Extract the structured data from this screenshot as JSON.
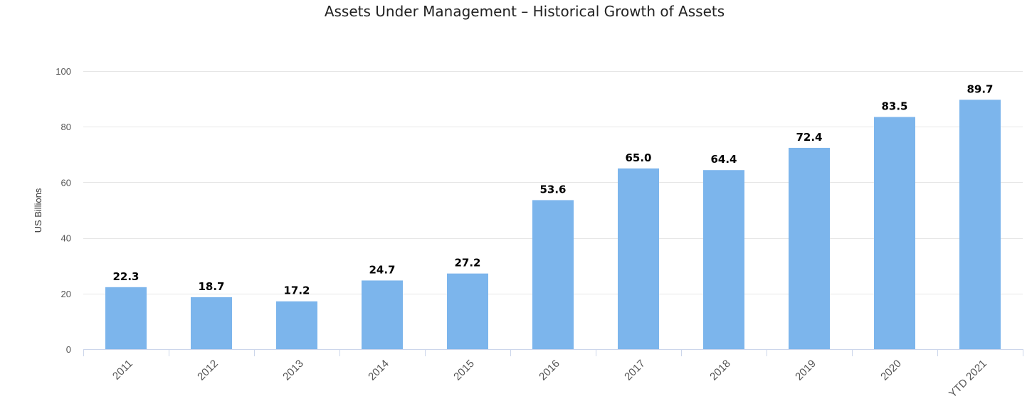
{
  "chart_data": {
    "type": "bar",
    "title": "Assets Under Management – Historical Growth of Assets",
    "ylabel": "US Billions",
    "xlabel": "",
    "ylim": [
      0,
      100
    ],
    "yticks": [
      0,
      20,
      40,
      60,
      80,
      100
    ],
    "grid": true,
    "bar_color": "#7cb5ec",
    "categories": [
      "2011",
      "2012",
      "2013",
      "2014",
      "2015",
      "2016",
      "2017",
      "2018",
      "2019",
      "2020",
      "YTD 2021"
    ],
    "values": [
      22.3,
      18.7,
      17.2,
      24.7,
      27.2,
      53.6,
      65.0,
      64.4,
      72.4,
      83.5,
      89.7
    ],
    "value_labels": [
      "22.3",
      "18.7",
      "17.2",
      "24.7",
      "27.2",
      "53.6",
      "65.0",
      "64.4",
      "72.4",
      "83.5",
      "89.7"
    ]
  }
}
